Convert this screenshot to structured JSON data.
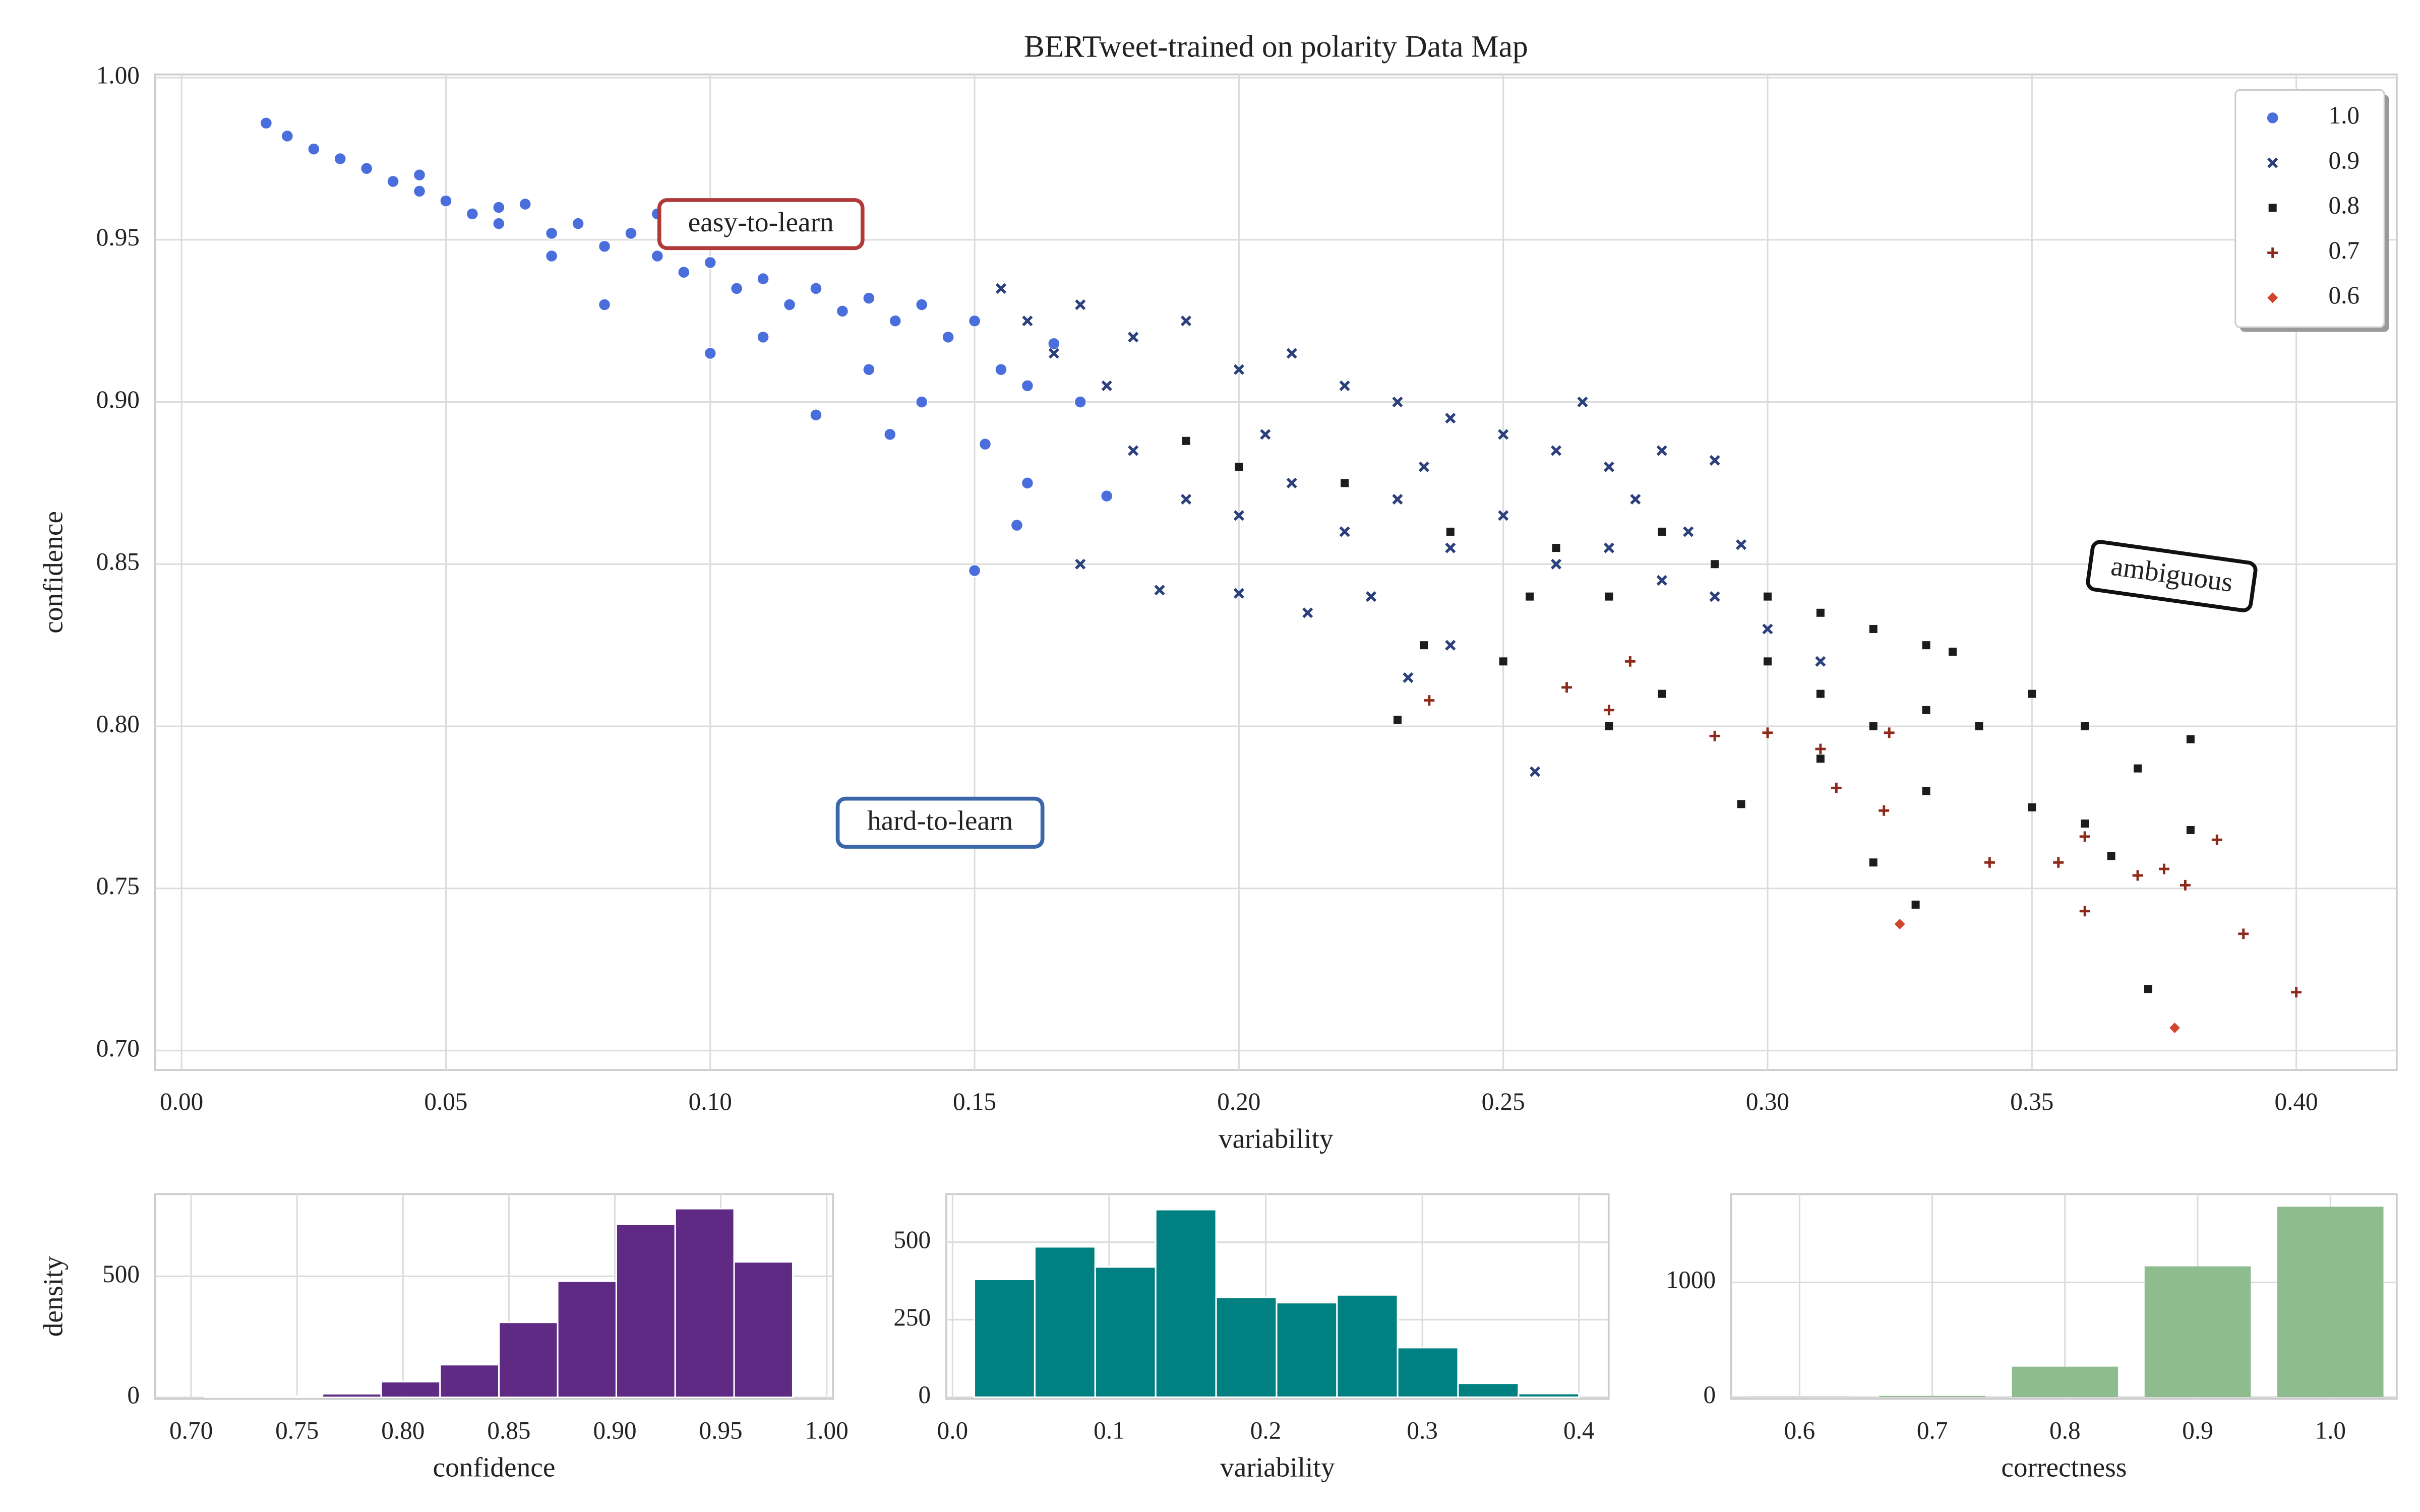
{
  "chart_data": [
    {
      "type": "scatter",
      "title": "BERTweet-trained on polarity Data Map",
      "xlabel": "variability",
      "ylabel": "confidence",
      "xlim": [
        -0.005,
        0.419
      ],
      "ylim": [
        0.694,
        1.001
      ],
      "xticks": [
        {
          "value": 0,
          "label": "0.00"
        },
        0.05,
        {
          "value": 0.1,
          "label": "0.10"
        },
        0.15,
        {
          "value": 0.2,
          "label": "0.20"
        },
        0.25,
        {
          "value": 0.3,
          "label": "0.30"
        },
        0.35,
        {
          "value": 0.4,
          "label": "0.40"
        }
      ],
      "yticks": [
        {
          "value": 0.7,
          "label": "0.70"
        },
        0.75,
        {
          "value": 0.8,
          "label": "0.80"
        },
        0.85,
        {
          "value": 0.9,
          "label": "0.90"
        },
        0.95,
        {
          "value": 1,
          "label": "1.00"
        }
      ],
      "grid": true,
      "legend": "upper right",
      "annotations": [
        "easy-to-learn",
        "hard-to-learn",
        "ambiguous"
      ],
      "series": [
        {
          "name": "1.0",
          "color": "#4a6fdc",
          "marker": "o",
          "x": [
            0.016,
            0.02,
            0.025,
            0.03,
            0.035,
            0.04,
            0.045,
            0.05,
            0.055,
            0.06,
            0.065,
            0.07,
            0.075,
            0.08,
            0.085,
            0.09,
            0.095,
            0.1,
            0.105,
            0.11,
            0.115,
            0.12,
            0.125,
            0.13,
            0.135,
            0.14,
            0.145,
            0.15,
            0.155,
            0.16,
            0.165,
            0.17,
            0.152,
            0.16,
            0.175,
            0.15,
            0.12,
            0.134,
            0.1,
            0.08,
            0.06,
            0.045,
            0.11,
            0.14,
            0.158,
            0.07,
            0.09,
            0.13
          ],
          "values": [
            0.986,
            0.982,
            0.978,
            0.975,
            0.972,
            0.968,
            0.965,
            0.962,
            0.958,
            0.955,
            0.961,
            0.952,
            0.955,
            0.948,
            0.952,
            0.945,
            0.94,
            0.943,
            0.935,
            0.938,
            0.93,
            0.935,
            0.928,
            0.932,
            0.925,
            0.93,
            0.92,
            0.925,
            0.91,
            0.905,
            0.918,
            0.9,
            0.887,
            0.875,
            0.871,
            0.848,
            0.896,
            0.89,
            0.915,
            0.93,
            0.96,
            0.97,
            0.92,
            0.9,
            0.862,
            0.945,
            0.958,
            0.91
          ]
        },
        {
          "name": "0.9",
          "color": "#2b3f7d",
          "marker": "x",
          "x": [
            0.155,
            0.16,
            0.17,
            0.18,
            0.19,
            0.2,
            0.21,
            0.22,
            0.23,
            0.24,
            0.25,
            0.26,
            0.27,
            0.28,
            0.29,
            0.18,
            0.19,
            0.2,
            0.21,
            0.22,
            0.23,
            0.24,
            0.25,
            0.26,
            0.27,
            0.28,
            0.29,
            0.3,
            0.31,
            0.295,
            0.185,
            0.2,
            0.225,
            0.24,
            0.213,
            0.256,
            0.232,
            0.17,
            0.175,
            0.165,
            0.205,
            0.235,
            0.275,
            0.265,
            0.285
          ],
          "values": [
            0.935,
            0.925,
            0.93,
            0.92,
            0.925,
            0.91,
            0.915,
            0.905,
            0.9,
            0.895,
            0.89,
            0.885,
            0.88,
            0.885,
            0.882,
            0.885,
            0.87,
            0.865,
            0.875,
            0.86,
            0.87,
            0.855,
            0.865,
            0.85,
            0.855,
            0.845,
            0.84,
            0.83,
            0.82,
            0.856,
            0.842,
            0.841,
            0.84,
            0.825,
            0.835,
            0.786,
            0.815,
            0.85,
            0.905,
            0.915,
            0.89,
            0.88,
            0.87,
            0.9,
            0.86
          ]
        },
        {
          "name": "0.8",
          "color": "#1c1c1c",
          "marker": "s",
          "x": [
            0.19,
            0.2,
            0.22,
            0.24,
            0.26,
            0.27,
            0.28,
            0.29,
            0.3,
            0.31,
            0.32,
            0.33,
            0.335,
            0.3,
            0.31,
            0.32,
            0.33,
            0.34,
            0.35,
            0.36,
            0.37,
            0.38,
            0.31,
            0.33,
            0.35,
            0.36,
            0.38,
            0.295,
            0.32,
            0.328,
            0.372,
            0.23,
            0.235,
            0.25,
            0.27,
            0.28,
            0.255,
            0.365
          ],
          "values": [
            0.888,
            0.88,
            0.875,
            0.86,
            0.855,
            0.84,
            0.86,
            0.85,
            0.84,
            0.835,
            0.83,
            0.825,
            0.823,
            0.82,
            0.81,
            0.8,
            0.805,
            0.8,
            0.81,
            0.8,
            0.787,
            0.796,
            0.79,
            0.78,
            0.775,
            0.77,
            0.768,
            0.776,
            0.758,
            0.745,
            0.719,
            0.802,
            0.825,
            0.82,
            0.8,
            0.81,
            0.84,
            0.76
          ]
        },
        {
          "name": "0.7",
          "color": "#8e2a1c",
          "marker": "+",
          "x": [
            0.236,
            0.262,
            0.274,
            0.29,
            0.3,
            0.31,
            0.313,
            0.322,
            0.323,
            0.342,
            0.355,
            0.36,
            0.36,
            0.37,
            0.375,
            0.379,
            0.39,
            0.4,
            0.385,
            0.27
          ],
          "values": [
            0.808,
            0.812,
            0.82,
            0.797,
            0.798,
            0.793,
            0.781,
            0.774,
            0.798,
            0.758,
            0.758,
            0.766,
            0.743,
            0.754,
            0.756,
            0.751,
            0.736,
            0.718,
            0.765,
            0.805
          ]
        },
        {
          "name": "0.6",
          "color": "#d2452d",
          "marker": "D",
          "x": [
            0.325,
            0.377
          ],
          "values": [
            0.739,
            0.707
          ]
        }
      ]
    },
    {
      "type": "histogram",
      "xlabel": "confidence",
      "ylabel": "density",
      "color": "#5e2a84",
      "xlim": [
        0.683,
        1.003
      ],
      "ylim": [
        -6,
        840
      ],
      "xticks": [
        {
          "value": 0.7,
          "label": "0.70"
        },
        0.75,
        {
          "value": 0.8,
          "label": "0.80"
        },
        0.85,
        {
          "value": 0.9,
          "label": "0.90"
        },
        0.95,
        {
          "value": 1,
          "label": "1.00"
        }
      ],
      "yticks": [
        0,
        500
      ],
      "grid": true,
      "bins": [
        0.7064,
        0.7342,
        0.762,
        0.7897,
        0.8175,
        0.8453,
        0.873,
        0.9007,
        0.9285,
        0.9563,
        0.984
      ],
      "values": [
        1,
        5,
        15,
        65,
        135,
        310,
        480,
        715,
        780,
        560
      ]
    },
    {
      "type": "histogram",
      "xlabel": "variability",
      "color": "#008080",
      "xlim": [
        -0.004,
        0.419
      ],
      "ylim": [
        -5,
        655
      ],
      "xticks": [
        {
          "value": 0,
          "label": "0.0"
        },
        0.1,
        0.2,
        0.3,
        0.4
      ],
      "yticks": [
        0,
        250,
        500
      ],
      "grid": true,
      "bins": [
        0.0139,
        0.0525,
        0.0911,
        0.1297,
        0.1683,
        0.2069,
        0.2455,
        0.2842,
        0.3228,
        0.3614,
        0.4
      ],
      "values": [
        380,
        485,
        420,
        605,
        322,
        305,
        330,
        160,
        45,
        12
      ]
    },
    {
      "type": "bar",
      "xlabel": "correctness",
      "color": "#8fbc8f",
      "xlim": [
        0.5485,
        1.05
      ],
      "ylim": [
        -15,
        1770
      ],
      "xticks": [
        0.6,
        0.7,
        0.8,
        0.9,
        {
          "value": 1,
          "label": "1.0"
        }
      ],
      "yticks": [
        0,
        1000
      ],
      "grid": true,
      "x": [
        0.6,
        0.7,
        0.8,
        0.9,
        1.0
      ],
      "values": [
        2,
        10,
        265,
        1140,
        1660
      ]
    }
  ]
}
